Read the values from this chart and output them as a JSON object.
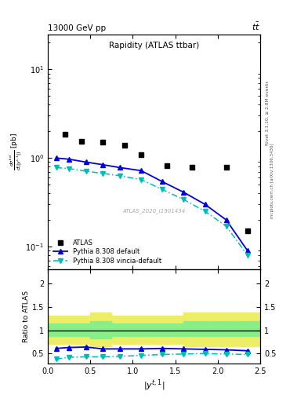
{
  "title_top_left": "13000 GeV pp",
  "title_top_right": "tt",
  "plot_title": "Rapidity (ATLAS ttbar)",
  "xlabel": "|y^{t,1}|",
  "ylabel_ratio": "Ratio to ATLAS",
  "watermark": "ATLAS_2020_I1901434",
  "right_label1": "Rivet 3.1.10, ≥ 2.8M events",
  "right_label2": "mcplots.cern.ch [arXiv:1306.3436]",
  "atlas_x": [
    0.2,
    0.4,
    0.65,
    0.9,
    1.1,
    1.4,
    1.7,
    2.1,
    2.35
  ],
  "atlas_y": [
    1.85,
    1.55,
    1.5,
    1.4,
    1.1,
    0.82,
    0.78,
    0.78,
    0.15
  ],
  "pythia_default_x": [
    0.1,
    0.25,
    0.45,
    0.65,
    0.85,
    1.1,
    1.35,
    1.6,
    1.85,
    2.1,
    2.35
  ],
  "pythia_default_y": [
    1.0,
    0.97,
    0.9,
    0.84,
    0.78,
    0.72,
    0.54,
    0.41,
    0.3,
    0.2,
    0.09
  ],
  "pythia_vincia_x": [
    0.1,
    0.25,
    0.45,
    0.65,
    0.85,
    1.1,
    1.35,
    1.6,
    1.85,
    2.1,
    2.35
  ],
  "pythia_vincia_y": [
    0.78,
    0.76,
    0.71,
    0.67,
    0.63,
    0.57,
    0.44,
    0.34,
    0.25,
    0.17,
    0.08
  ],
  "ratio_default_x": [
    0.1,
    0.25,
    0.45,
    0.65,
    0.85,
    1.1,
    1.35,
    1.6,
    1.85,
    2.1,
    2.35
  ],
  "ratio_default_y": [
    0.61,
    0.63,
    0.64,
    0.6,
    0.6,
    0.6,
    0.61,
    0.6,
    0.59,
    0.58,
    0.56
  ],
  "ratio_vincia_x": [
    0.1,
    0.25,
    0.45,
    0.65,
    0.85,
    1.1,
    1.35,
    1.6,
    1.85,
    2.1,
    2.35
  ],
  "ratio_vincia_y": [
    0.38,
    0.42,
    0.43,
    0.43,
    0.44,
    0.46,
    0.48,
    0.49,
    0.5,
    0.49,
    0.48
  ],
  "band_x_edges": [
    0.0,
    0.25,
    0.5,
    0.75,
    1.0,
    1.3,
    1.6,
    1.9,
    2.2,
    2.5
  ],
  "band_green_low": [
    0.87,
    0.87,
    0.83,
    0.87,
    0.87,
    0.87,
    0.87,
    0.87,
    0.87,
    0.87
  ],
  "band_green_high": [
    1.15,
    1.15,
    1.19,
    1.15,
    1.15,
    1.15,
    1.19,
    1.19,
    1.19,
    1.19
  ],
  "band_yellow_low": [
    0.7,
    0.7,
    0.66,
    0.7,
    0.7,
    0.7,
    0.66,
    0.66,
    0.66,
    0.66
  ],
  "band_yellow_high": [
    1.32,
    1.32,
    1.38,
    1.32,
    1.32,
    1.32,
    1.38,
    1.38,
    1.38,
    1.38
  ],
  "xlim": [
    0.0,
    2.5
  ],
  "ylim_main": [
    0.055,
    25
  ],
  "ylim_ratio": [
    0.28,
    2.3
  ],
  "ratio_yticks": [
    0.5,
    1.0,
    1.5,
    2.0
  ],
  "ratio_yticklabels": [
    "0.5",
    "1",
    "1.5",
    "2"
  ],
  "color_atlas": "black",
  "color_default": "#0000dd",
  "color_vincia": "#00bbbb",
  "marker_atlas": "s",
  "marker_default": "^",
  "marker_vincia": "v",
  "color_band_green": "#88ee88",
  "color_band_yellow": "#eeee66"
}
